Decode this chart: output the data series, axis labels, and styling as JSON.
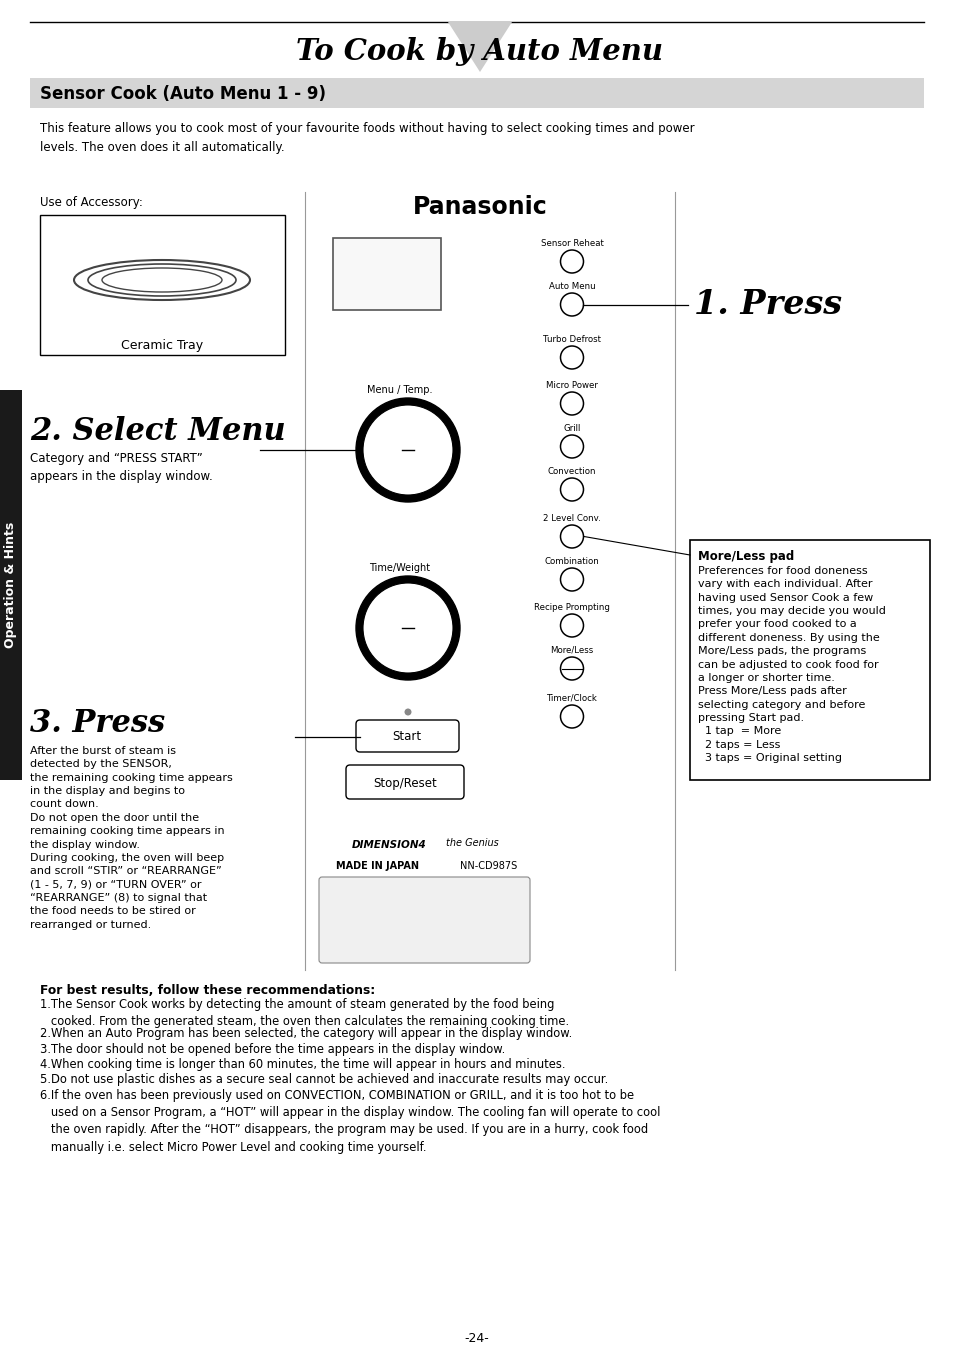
{
  "title": "To Cook by Auto Menu",
  "section_title": "Sensor Cook (Auto Menu 1 - 9)",
  "intro_text": "This feature allows you to cook most of your favourite foods without having to select cooking times and power\nlevels. The oven does it all automatically.",
  "accessory_label": "Use of Accessory:",
  "ceramic_tray_label": "Ceramic Tray",
  "panasonic_label": "Panasonic",
  "step1_label": "1. Press",
  "step2_label": "2. Select Menu",
  "step2_sub": "Category and “PRESS START”\nappears in the display window.",
  "step3_label": "3. Press",
  "step3_sub": "After the burst of steam is\ndetected by the SENSOR,\nthe remaining cooking time appears\nin the display and begins to\ncount down.\nDo not open the door until the\nremaining cooking time appears in\nthe display window.\nDuring cooking, the oven will beep\nand scroll “STIR” or “REARRANGE”\n(1 - 5, 7, 9) or “TURN OVER” or\n“REARRANGE” (8) to signal that\nthe food needs to be stired or\nrearranged or turned.",
  "moreless_title": "More/Less pad",
  "moreless_text": "Preferences for food doneness\nvary with each individual. After\nhaving used Sensor Cook a few\ntimes, you may decide you would\nprefer your food cooked to a\ndifferent doneness. By using the\nMore/Less pads, the programs\ncan be adjusted to cook food for\na longer or shorter time.\nPress More/Less pads after\nselecting category and before\npressing Start pad.\n  1 tap  = More\n  2 taps = Less\n  3 taps = Original setting",
  "sidebar_label": "Operation & Hints",
  "button_labels": [
    "Sensor Reheat",
    "Auto Menu",
    "Turbo Defrost",
    "Micro Power",
    "Grill",
    "Convection",
    "2 Level Conv.",
    "Combination",
    "Recipe Prompting",
    "More/Less",
    "Timer/Clock"
  ],
  "made_in_japan": "MADE IN JAPAN",
  "model": "NN-CD987S",
  "best_results_title": "For best results, follow these recommendations:",
  "best_results_items": [
    "1.The Sensor Cook works by detecting the amount of steam generated by the food being\n   cooked. From the generated steam, the oven then calculates the remaining cooking time.",
    "2.When an Auto Program has been selected, the category will appear in the display window.",
    "3.The door should not be opened before the time appears in the display window.",
    "4.When cooking time is longer than 60 minutes, the time will appear in hours and minutes.",
    "5.Do not use plastic dishes as a secure seal cannot be achieved and inaccurate results may occur.",
    "6.If the oven has been previously used on CONVECTION, COMBINATION or GRILL, and it is too hot to be\n   used on a Sensor Program, a “HOT” will appear in the display window. The cooling fan will operate to cool\n   the oven rapidly. After the “HOT” disappears, the program may be used. If you are in a hurry, cook food\n   manually i.e. select Micro Power Level and cooking time yourself."
  ],
  "page_number": "-24-",
  "bg_color": "#ffffff",
  "sidebar_bg": "#1a1a1a",
  "section_bg": "#d5d5d5"
}
